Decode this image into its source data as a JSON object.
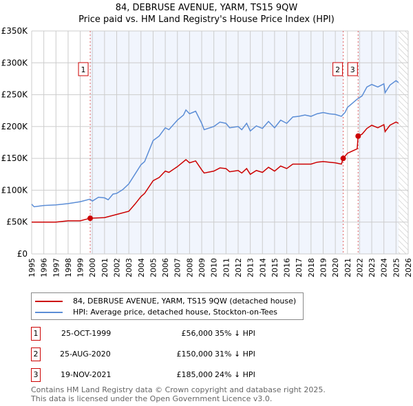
{
  "chart_data": {
    "type": "line",
    "title": "84, DEBRUSE AVENUE, YARM, TS15 9QW",
    "subtitle": "Price paid vs. HM Land Registry's House Price Index (HPI)",
    "xlim": [
      1995,
      2026
    ],
    "ylim": [
      0,
      350000
    ],
    "x_ticks": [
      "1995",
      "1996",
      "1997",
      "1998",
      "1999",
      "2000",
      "2001",
      "2002",
      "2003",
      "2004",
      "2005",
      "2006",
      "2007",
      "2008",
      "2009",
      "2010",
      "2011",
      "2012",
      "2013",
      "2014",
      "2015",
      "2016",
      "2017",
      "2018",
      "2019",
      "2020",
      "2021",
      "2022",
      "2023",
      "2024",
      "2025",
      "2026"
    ],
    "y_ticks": [
      {
        "v": 0,
        "l": "£0"
      },
      {
        "v": 50000,
        "l": "£50K"
      },
      {
        "v": 100000,
        "l": "£100K"
      },
      {
        "v": 150000,
        "l": "£150K"
      },
      {
        "v": 200000,
        "l": "£200K"
      },
      {
        "v": 250000,
        "l": "£250K"
      },
      {
        "v": 300000,
        "l": "£300K"
      },
      {
        "v": 350000,
        "l": "£350K"
      }
    ],
    "grid": true,
    "series": [
      {
        "name": "84, DEBRUSE AVENUE, YARM, TS15 9QW (detached house)",
        "color": "#cc0000",
        "points": [
          [
            1995,
            50
          ],
          [
            1996,
            50
          ],
          [
            1997,
            50
          ],
          [
            1998,
            52
          ],
          [
            1999,
            52
          ],
          [
            1999.8,
            56
          ],
          [
            2001,
            57
          ],
          [
            2002,
            62
          ],
          [
            2003,
            67
          ],
          [
            2003.5,
            78
          ],
          [
            2004,
            90
          ],
          [
            2004.3,
            95
          ],
          [
            2005,
            115
          ],
          [
            2005.5,
            120
          ],
          [
            2006,
            130
          ],
          [
            2006.3,
            128
          ],
          [
            2007,
            137
          ],
          [
            2007.7,
            148
          ],
          [
            2008,
            143
          ],
          [
            2008.5,
            146
          ],
          [
            2009,
            132
          ],
          [
            2009.2,
            127
          ],
          [
            2010,
            130
          ],
          [
            2010.5,
            135
          ],
          [
            2011,
            134
          ],
          [
            2011.3,
            129
          ],
          [
            2012,
            131
          ],
          [
            2012.3,
            127
          ],
          [
            2012.7,
            134
          ],
          [
            2013,
            125
          ],
          [
            2013.5,
            131
          ],
          [
            2014,
            128
          ],
          [
            2014.5,
            136
          ],
          [
            2015,
            130
          ],
          [
            2015.5,
            138
          ],
          [
            2016,
            134
          ],
          [
            2016.5,
            141
          ],
          [
            2017,
            141
          ],
          [
            2018,
            141
          ],
          [
            2018.5,
            144
          ],
          [
            2019,
            145
          ],
          [
            2019.5,
            144
          ],
          [
            2020,
            143
          ],
          [
            2020.5,
            141
          ],
          [
            2020.65,
            150
          ],
          [
            2021,
            158
          ],
          [
            2021.8,
            165
          ],
          [
            2021.88,
            185
          ],
          [
            2022.2,
            188
          ],
          [
            2022.6,
            197
          ],
          [
            2023,
            202
          ],
          [
            2023.5,
            198
          ],
          [
            2024,
            203
          ],
          [
            2024.1,
            192
          ],
          [
            2024.5,
            202
          ],
          [
            2025,
            207
          ],
          [
            2025.2,
            205
          ]
        ]
      },
      {
        "name": "HPI: Average price, detached house, Stockton-on-Tees",
        "color": "#5b8dd6",
        "points": [
          [
            1995,
            78
          ],
          [
            1995.2,
            74
          ],
          [
            1996,
            76
          ],
          [
            1997,
            77
          ],
          [
            1998,
            79
          ],
          [
            1999,
            82
          ],
          [
            1999.8,
            86
          ],
          [
            2000,
            83
          ],
          [
            2000.5,
            89
          ],
          [
            2001,
            88
          ],
          [
            2001.3,
            85
          ],
          [
            2001.7,
            94
          ],
          [
            2002,
            95
          ],
          [
            2002.5,
            101
          ],
          [
            2003,
            110
          ],
          [
            2003.5,
            125
          ],
          [
            2004,
            140
          ],
          [
            2004.3,
            145
          ],
          [
            2005,
            178
          ],
          [
            2005.5,
            185
          ],
          [
            2006,
            198
          ],
          [
            2006.3,
            195
          ],
          [
            2007,
            210
          ],
          [
            2007.5,
            218
          ],
          [
            2007.7,
            226
          ],
          [
            2008,
            220
          ],
          [
            2008.5,
            224
          ],
          [
            2009,
            205
          ],
          [
            2009.2,
            195
          ],
          [
            2010,
            200
          ],
          [
            2010.5,
            207
          ],
          [
            2011,
            205
          ],
          [
            2011.3,
            198
          ],
          [
            2012,
            200
          ],
          [
            2012.3,
            195
          ],
          [
            2012.7,
            205
          ],
          [
            2013,
            193
          ],
          [
            2013.5,
            201
          ],
          [
            2014,
            197
          ],
          [
            2014.5,
            208
          ],
          [
            2015,
            198
          ],
          [
            2015.5,
            210
          ],
          [
            2016,
            205
          ],
          [
            2016.5,
            215
          ],
          [
            2017,
            216
          ],
          [
            2017.5,
            218
          ],
          [
            2018,
            216
          ],
          [
            2018.5,
            220
          ],
          [
            2019,
            222
          ],
          [
            2019.5,
            220
          ],
          [
            2020,
            219
          ],
          [
            2020.5,
            216
          ],
          [
            2020.8,
            222
          ],
          [
            2021,
            230
          ],
          [
            2021.8,
            243
          ],
          [
            2022.2,
            248
          ],
          [
            2022.6,
            262
          ],
          [
            2023,
            266
          ],
          [
            2023.5,
            262
          ],
          [
            2024,
            267
          ],
          [
            2024.1,
            253
          ],
          [
            2024.5,
            265
          ],
          [
            2025,
            272
          ],
          [
            2025.2,
            269
          ]
        ]
      }
    ],
    "sales": [
      {
        "label": "1",
        "x": 1999.82,
        "y": 56
      },
      {
        "label": "2",
        "x": 2020.65,
        "y": 150
      },
      {
        "label": "3",
        "x": 2021.88,
        "y": 185
      }
    ],
    "forecast_from": 2025.2
  },
  "legend": [
    "84, DEBRUSE AVENUE, YARM, TS15 9QW (detached house)",
    "HPI: Average price, detached house, Stockton-on-Tees"
  ],
  "table": [
    {
      "n": "1",
      "date": "25-OCT-1999",
      "price": "£56,000",
      "hpi": "35% ↓ HPI"
    },
    {
      "n": "2",
      "date": "25-AUG-2020",
      "price": "£150,000",
      "hpi": "31% ↓ HPI"
    },
    {
      "n": "3",
      "date": "19-NOV-2021",
      "price": "£185,000",
      "hpi": "24% ↓ HPI"
    }
  ],
  "footer": [
    "Contains HM Land Registry data © Crown copyright and database right 2025.",
    "This data is licensed under the Open Government Licence v3.0."
  ]
}
